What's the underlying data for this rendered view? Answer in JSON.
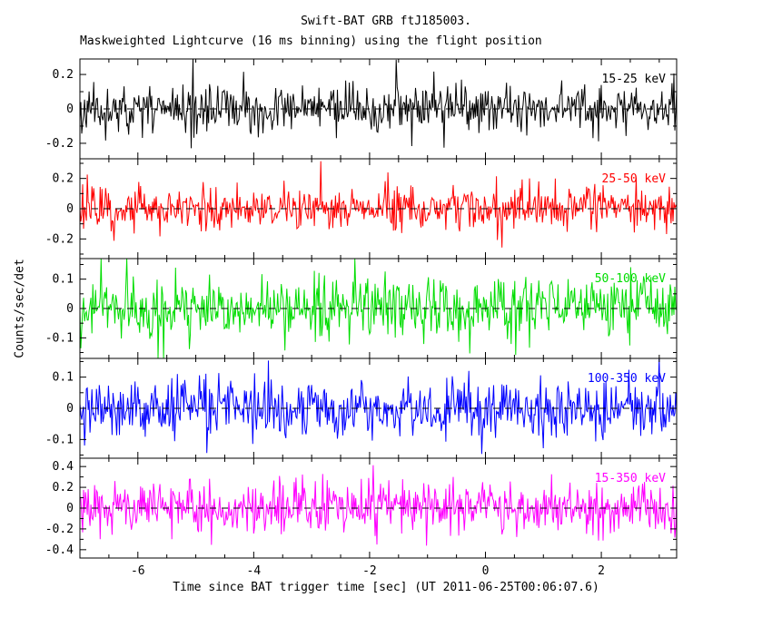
{
  "chart_data": {
    "type": "line",
    "title": "Swift-BAT GRB ftJ185003.",
    "subtitle": "Maskweighted Lightcurve (16 ms binning) using the flight position",
    "xlabel": "Time since BAT trigger time [sec] (UT 2011-06-25T00:06:07.6)",
    "ylabel": "Counts/sec/det",
    "xlim": [
      -7.0,
      3.3
    ],
    "xticks": [
      -6,
      -4,
      -2,
      0,
      2
    ],
    "x_minor_step": 0.5,
    "bin_ms": 16,
    "n_points": 650,
    "grid": false,
    "legend": "in-panel band labels, top right, colored as trace",
    "zero_line_style": "dashed-black",
    "frame_color": "#000000",
    "background_color": "#ffffff",
    "panels": [
      {
        "name": "15-25 keV",
        "color": "#000000",
        "ylim": [
          -0.29,
          0.29
        ],
        "yticks": [
          0.2,
          0,
          -0.2
        ],
        "mean": 0,
        "sigma": 0.065,
        "seed": 11
      },
      {
        "name": "25-50 keV",
        "color": "#ff0000",
        "ylim": [
          -0.33,
          0.33
        ],
        "yticks": [
          0.2,
          0,
          -0.2
        ],
        "mean": 0,
        "sigma": 0.072,
        "seed": 22
      },
      {
        "name": "50-100 keV",
        "color": "#00dd00",
        "ylim": [
          -0.17,
          0.17
        ],
        "yticks": [
          0.1,
          0,
          -0.1
        ],
        "mean": 0,
        "sigma": 0.05,
        "seed": 33
      },
      {
        "name": "100-350 keV",
        "color": "#0000ff",
        "ylim": [
          -0.16,
          0.16
        ],
        "yticks": [
          0.1,
          0,
          -0.1
        ],
        "mean": 0,
        "sigma": 0.045,
        "seed": 44
      },
      {
        "name": "15-350 keV",
        "color": "#ff00ff",
        "ylim": [
          -0.48,
          0.48
        ],
        "yticks": [
          0.4,
          0.2,
          0,
          -0.2,
          -0.4
        ],
        "mean": 0,
        "sigma": 0.125,
        "seed": 55
      }
    ]
  }
}
